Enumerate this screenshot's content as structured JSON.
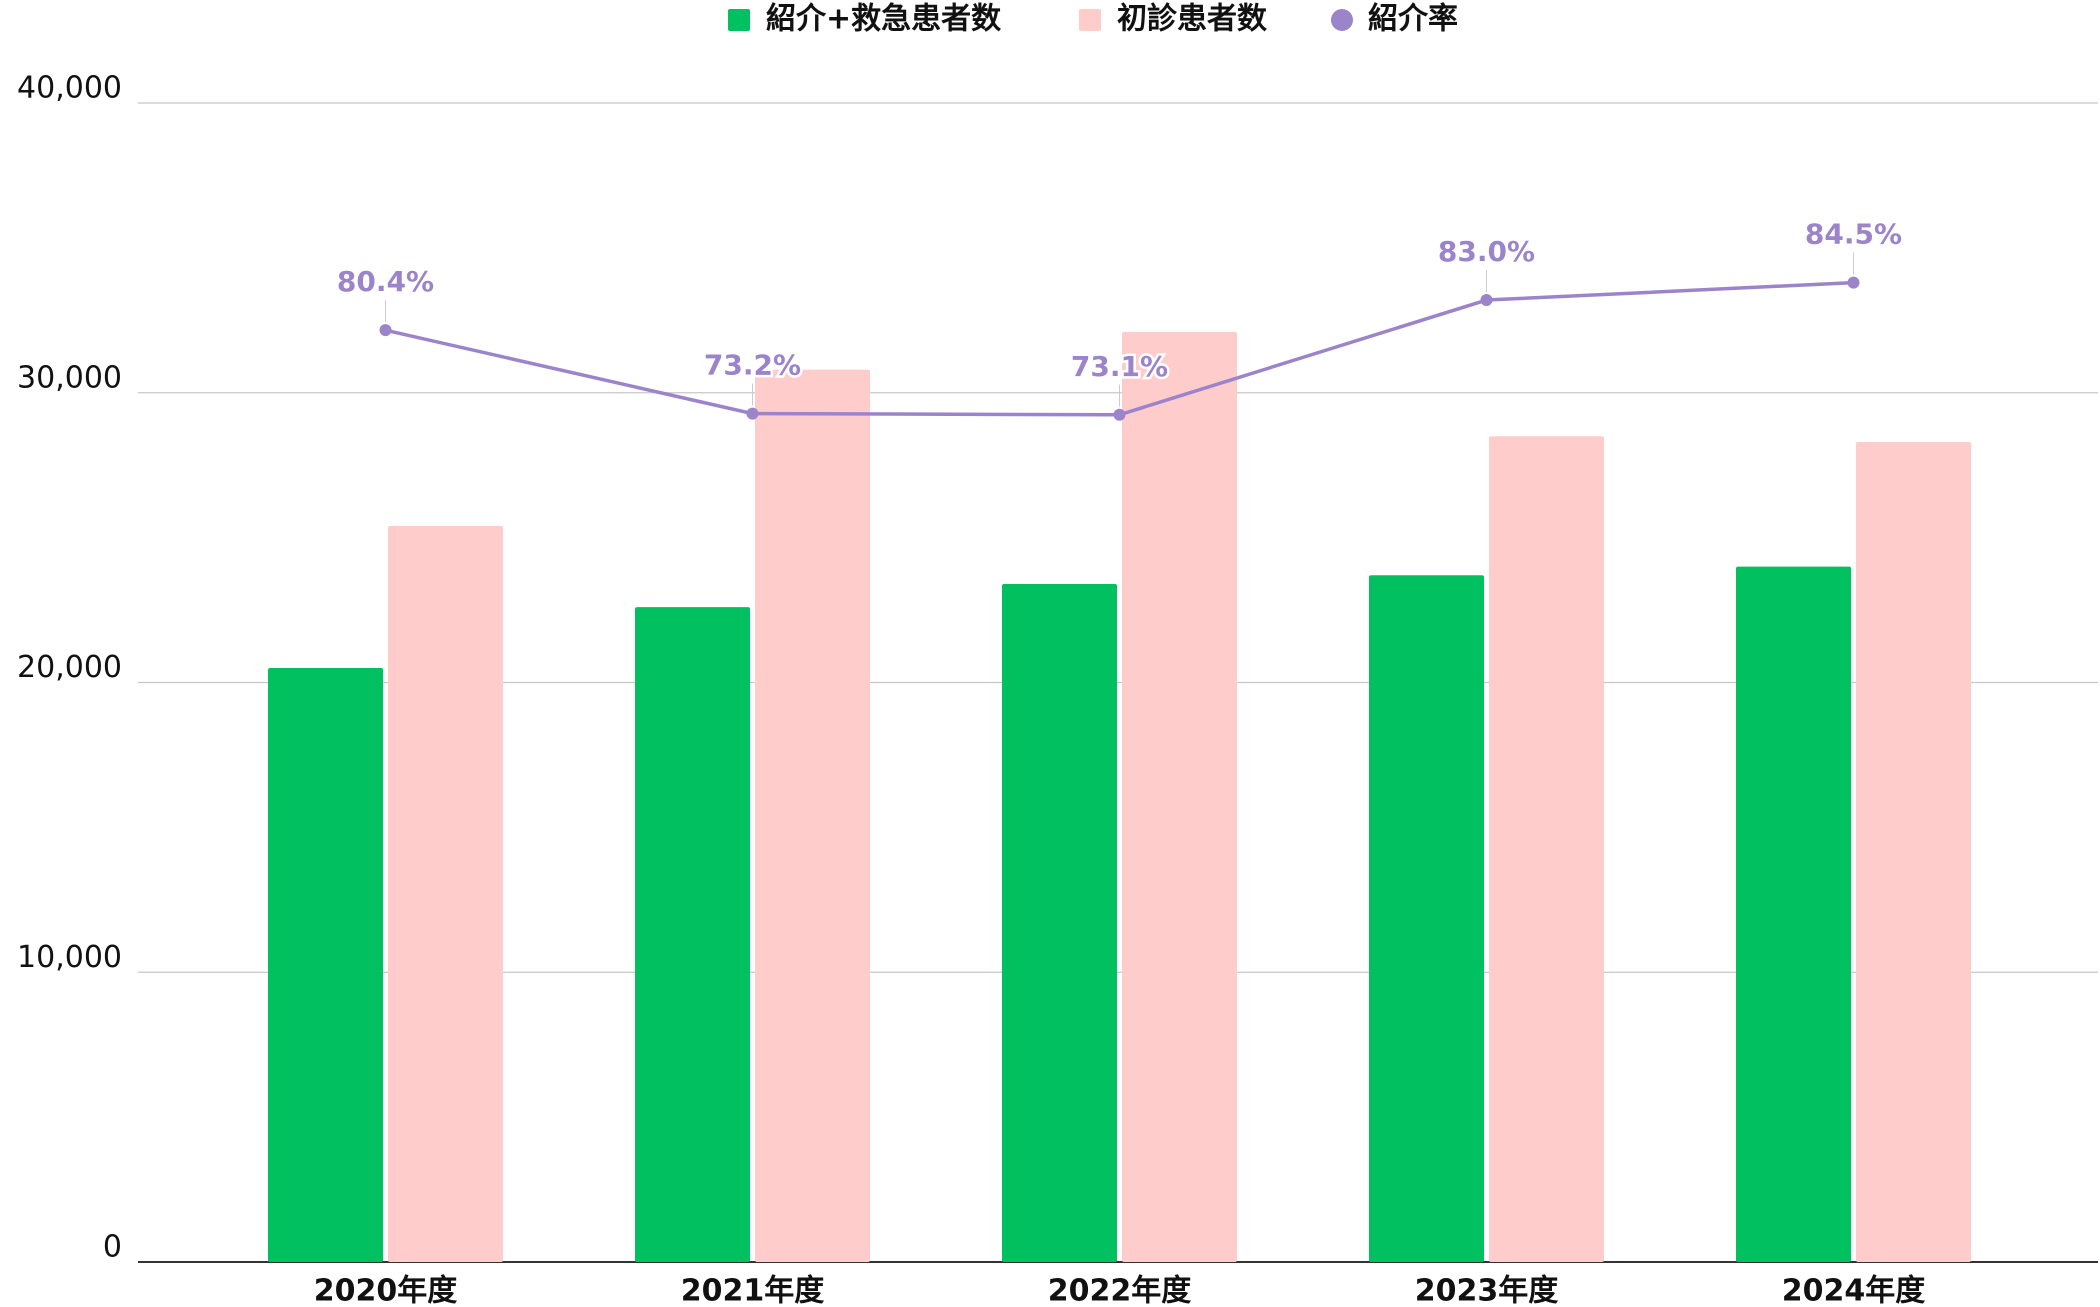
{
  "chart_data": {
    "type": "bar",
    "categories": [
      "2020年度",
      "2021年度",
      "2022年度",
      "2023年度",
      "2024年度"
    ],
    "series": [
      {
        "name": "紹介+救急患者数",
        "color": "#00c05f",
        "type": "bar",
        "values": [
          20500,
          22600,
          23400,
          23700,
          24000
        ]
      },
      {
        "name": "初診患者数",
        "color": "#ffcccc",
        "type": "bar",
        "values": [
          25400,
          30800,
          32100,
          28500,
          28300
        ]
      },
      {
        "name": "紹介率",
        "color": "#9b84c9",
        "type": "line",
        "axis": "y2",
        "values": [
          80.4,
          73.2,
          73.1,
          83.0,
          84.5
        ],
        "value_labels": [
          "80.4%",
          "73.2%",
          "73.1%",
          "83.0%",
          "84.5%"
        ]
      }
    ],
    "ylim": [
      0,
      40000
    ],
    "yticks": [
      0,
      {
        "value": 10000,
        "label": "10,000"
      },
      {
        "value": 20000,
        "label": "20,000"
      },
      {
        "value": 30000,
        "label": "30,000"
      },
      {
        "value": 40000,
        "label": "40,000"
      }
    ],
    "y2lim": [
      0,
      100
    ],
    "grid": true,
    "legend": "top"
  }
}
